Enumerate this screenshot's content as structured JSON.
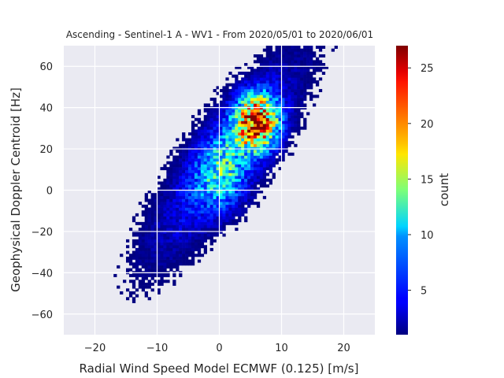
{
  "chart_data": {
    "type": "heatmap",
    "title": "Ascending - Sentinel-1 A - WV1 - From 2020/05/01 to 2020/06/01",
    "xlabel": "Radial Wind Speed Model ECMWF (0.125) [m/s]",
    "ylabel": "Geophysical Doppler Centroid [Hz]",
    "xlim": [
      -25,
      25
    ],
    "ylim": [
      -70,
      70
    ],
    "x_ticks": [
      -20,
      -10,
      0,
      10,
      20
    ],
    "y_ticks": [
      -60,
      -40,
      -20,
      0,
      20,
      40,
      60
    ],
    "x_tick_labels": [
      "−20",
      "−10",
      "0",
      "10",
      "20"
    ],
    "y_tick_labels": [
      "−60",
      "−40",
      "−20",
      "0",
      "20",
      "40",
      "60"
    ],
    "grid": true,
    "colormap": "jet",
    "background_color": "#eaeaf2",
    "colorbar": {
      "label": "count",
      "range": [
        1,
        27
      ],
      "ticks": [
        5,
        10,
        15,
        20,
        25
      ],
      "tick_labels": [
        "5",
        "10",
        "15",
        "20",
        "25"
      ]
    },
    "bins": {
      "x_start": -25,
      "x_step": 0.5,
      "y_start": -70,
      "y_step": 1.4
    },
    "density_model": {
      "description": "joint distribution of radial wind speed vs doppler centroid",
      "trend_slope_hz_per_ms": 3.3,
      "trend_intercept_hz": 12,
      "peak_location": [
        6,
        33
      ],
      "peak_count": 27
    }
  }
}
